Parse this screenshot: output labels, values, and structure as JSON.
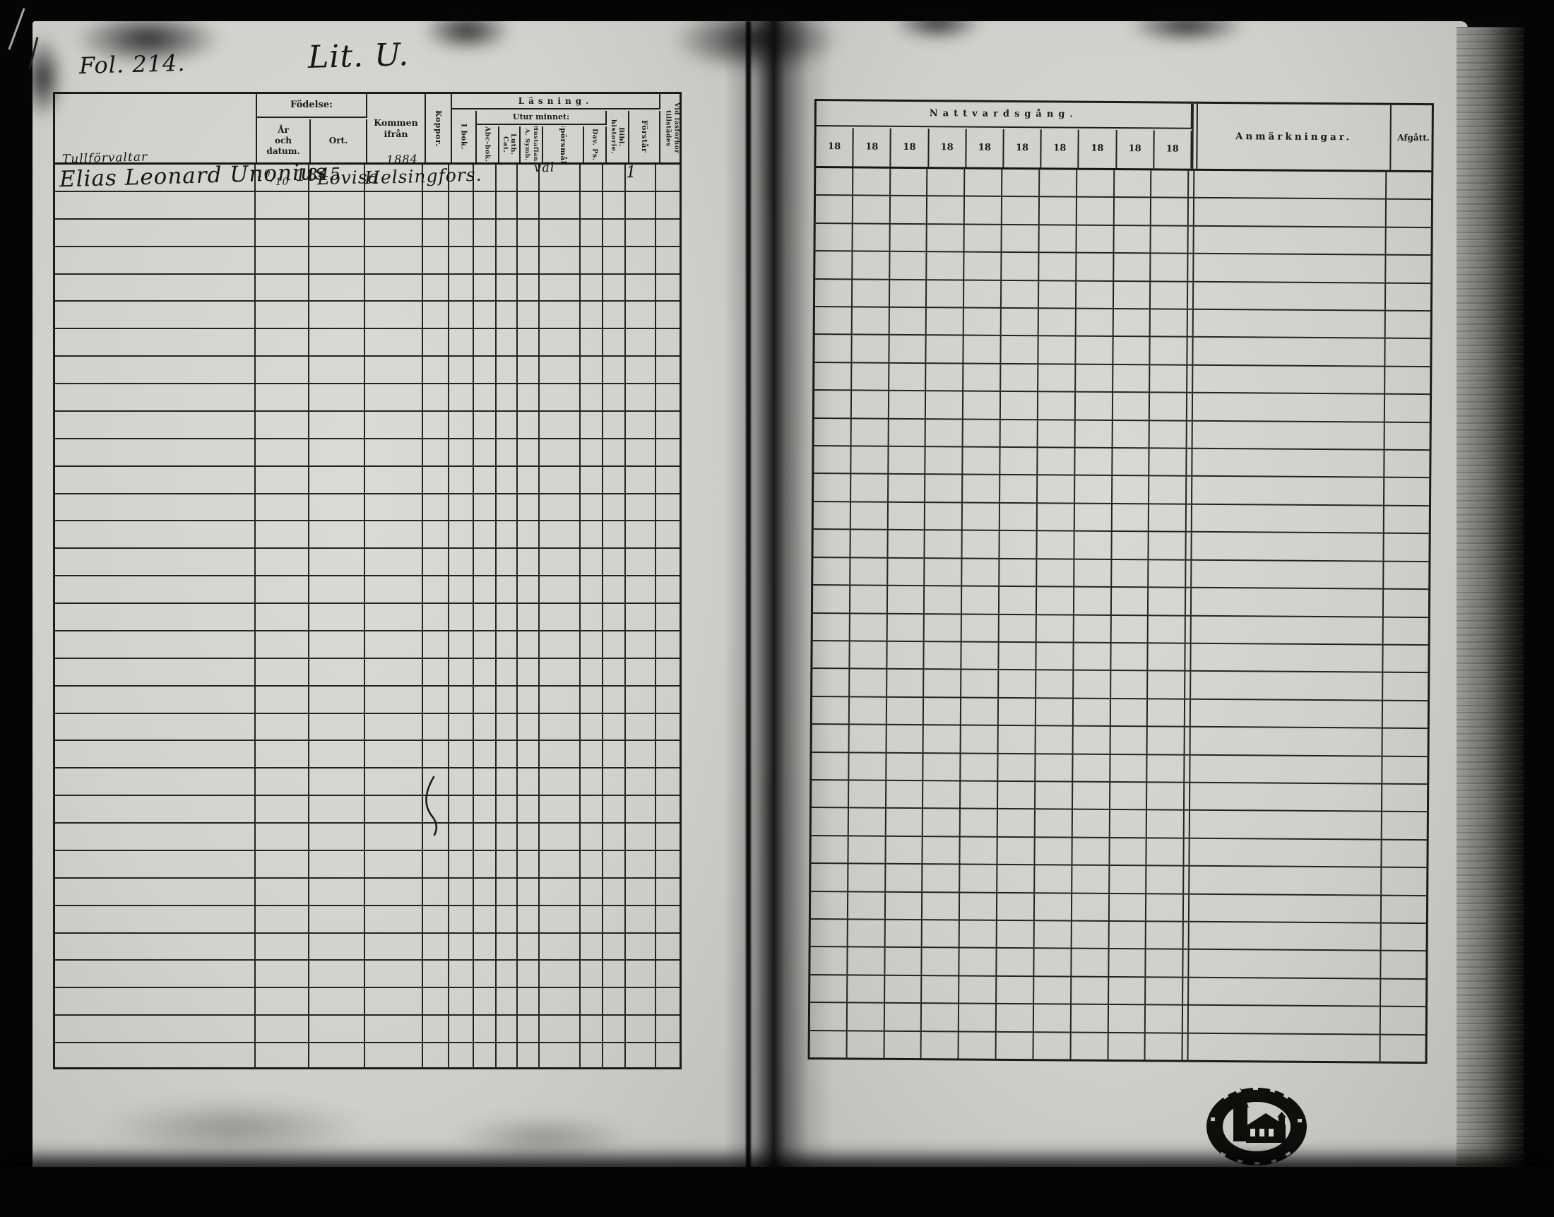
{
  "page": {
    "folio_label": "Fol. 214.",
    "litera_label": "Lit. U."
  },
  "left_table": {
    "header": {
      "birth_group": "Födelse:",
      "birth_date_line1": "År",
      "birth_date_line2": "och datum.",
      "birth_place": "Ort.",
      "arrived_from": "Kommen ifrån",
      "smallpox": "Koppor.",
      "reading_group": "Läsning.",
      "in_book": "I bok.",
      "from_memory_group": "Utur minnet:",
      "abc_book": "Abc-bok.",
      "luther_catechism": "Luth. Cat.",
      "hustavla_line1": "Hustaflan.",
      "hustavla_line2": "A. Symb.",
      "questions": "Spörsmål.",
      "davids_psalms": "Dav. Ps.",
      "bible_history": "Bibl. historie.",
      "understands": "Förstår",
      "attendance_line1": "Vid läsförhör",
      "attendance_line2": "tillstädes"
    },
    "row_count": 33,
    "entry": {
      "occupation": "Tullförvaltar",
      "name": "Elias Leonard Unonius",
      "birth_day": "10",
      "birth_month": "10",
      "birth_year": "1845",
      "birth_place": "Lovisa",
      "arrival_year": "1884",
      "arrived_from": "Helsingfors.",
      "questions_mark": "väl",
      "understands_mark": "1"
    }
  },
  "right_table": {
    "header": {
      "communion_group": "Nattvardsgång.",
      "year_columns": [
        "18",
        "18",
        "18",
        "18",
        "18",
        "18",
        "18",
        "18",
        "18",
        "18"
      ],
      "remarks": "Anmärkningar.",
      "departed": "Afgått."
    },
    "row_count": 32
  },
  "colors": {
    "paper": "#d3d2cf",
    "ink": "#1a1a1a",
    "background": "#070707"
  }
}
